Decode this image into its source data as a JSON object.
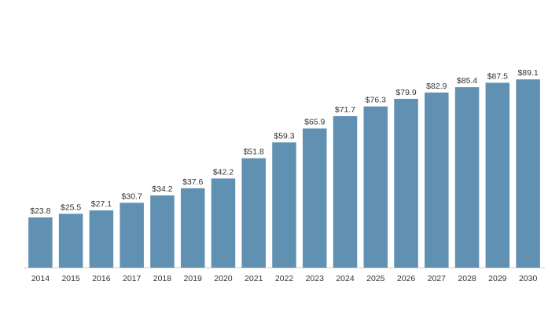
{
  "chart_data": {
    "type": "bar",
    "categories": [
      "2014",
      "2015",
      "2016",
      "2017",
      "2018",
      "2019",
      "2020",
      "2021",
      "2022",
      "2023",
      "2024",
      "2025",
      "2026",
      "2027",
      "2028",
      "2029",
      "2030"
    ],
    "values": [
      23.8,
      25.5,
      27.1,
      30.7,
      34.2,
      37.6,
      42.2,
      51.8,
      59.3,
      65.9,
      71.7,
      76.3,
      79.9,
      82.9,
      85.4,
      87.5,
      89.1
    ],
    "data_labels": [
      "$23.8",
      "$25.5",
      "$27.1",
      "$30.7",
      "$34.2",
      "$37.6",
      "$42.2",
      "$51.8",
      "$59.3",
      "$65.9",
      "$71.7",
      "$76.3",
      "$79.9",
      "$82.9",
      "$85.4",
      "$87.5",
      "$89.1"
    ],
    "title": "",
    "xlabel": "",
    "ylabel": "",
    "ylim": [
      0,
      100
    ],
    "grid": false,
    "colors": {
      "bar": "#6090b2",
      "axis": "#cccccc",
      "text": "#333333"
    }
  }
}
